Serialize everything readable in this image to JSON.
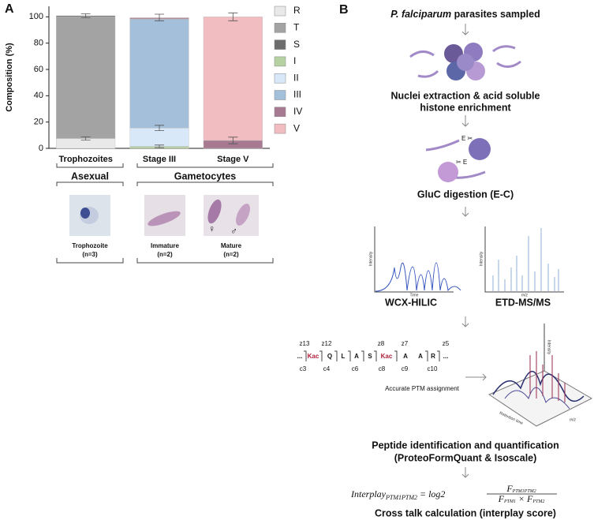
{
  "chart_data": {
    "type": "bar",
    "stacked": true,
    "panel": "A",
    "ylabel": "Composition (%)",
    "categories": [
      "Trophozoites",
      "Stage III",
      "Stage V"
    ],
    "ylim": [
      0,
      108
    ],
    "yticks": [
      0,
      20,
      40,
      60,
      80,
      100
    ],
    "grid": false,
    "legend": "right",
    "series": [
      {
        "name": "R",
        "color": "#e9e9e9",
        "values": [
          7.5,
          0,
          0
        ],
        "errors": [
          1.2,
          null,
          null
        ]
      },
      {
        "name": "T",
        "color": "#a3a3a3",
        "values": [
          92.5,
          0,
          0
        ],
        "errors": [
          null,
          null,
          null
        ]
      },
      {
        "name": "S",
        "color": "#6d6d6d",
        "values": [
          0.8,
          0,
          0
        ],
        "errors": [
          1.5,
          null,
          null
        ]
      },
      {
        "name": "I",
        "color": "#b6d1a2",
        "values": [
          0,
          1.5,
          0
        ],
        "errors": [
          null,
          1,
          null
        ]
      },
      {
        "name": "II",
        "color": "#d8e8f8",
        "values": [
          0,
          14,
          0
        ],
        "errors": [
          null,
          2,
          null
        ]
      },
      {
        "name": "III",
        "color": "#a4bfda",
        "values": [
          0,
          82.7,
          0
        ],
        "errors": [
          null,
          null,
          null
        ]
      },
      {
        "name": "IV",
        "color": "#a77a91",
        "values": [
          0,
          0.8,
          6
        ],
        "errors": [
          null,
          null,
          2.5
        ]
      },
      {
        "name": "V",
        "color": "#f1bdc1",
        "values": [
          0,
          0.5,
          94
        ],
        "errors": [
          null,
          2.5,
          3
        ]
      }
    ]
  },
  "samples": {
    "groups": [
      "Asexual",
      "Gametocytes"
    ],
    "items": [
      {
        "label": "Trophozoite",
        "n": "(n=3)"
      },
      {
        "label": "Immature",
        "n": "(n=2)"
      },
      {
        "label": "Mature",
        "n": "(n=2)"
      }
    ]
  },
  "workflow": {
    "panel": "B",
    "title_italic": "P. falciparum",
    "title_rest": " parasites sampled",
    "step1": [
      "Nuclei extraction & acid soluble",
      "histone enrichment"
    ],
    "step2": "GluC digestion (E-C)",
    "chrom": {
      "name": "WCX-HILIC",
      "ylabel": "Intensity",
      "xlabel": "Time"
    },
    "ms": {
      "name": "ETD-MS/MS",
      "ylabel": "Intensity",
      "xlabel": "m/z"
    },
    "residues": [
      "...",
      "Kac",
      "Q",
      "L",
      "A",
      "S",
      "Kac",
      "A",
      "A",
      "R",
      "..."
    ],
    "z_ions": [
      "z13",
      "z12",
      "z8",
      "z7",
      "z5"
    ],
    "c_ions": [
      "c3",
      "c4",
      "c6",
      "c8",
      "c9",
      "c10"
    ],
    "assignment": "Accurate PTM assignment",
    "plot3d": {
      "x": "Retention time",
      "y": "m/z",
      "z": "Intensity"
    },
    "step3": [
      "Peptide identification and quantification",
      "(ProteoFormQuant & Isoscale)"
    ],
    "formula": {
      "lhs": "Interplay",
      "lhs_sub": "PTM1PTM2",
      "op": " = log2",
      "num": "F",
      "num_sub": "PTM1PTM2",
      "den1": "F",
      "den1_sub": "PTM1",
      "times": " × ",
      "den2": "F",
      "den2_sub": "PTM2"
    },
    "step4": "Cross talk calculation (interplay score)"
  }
}
